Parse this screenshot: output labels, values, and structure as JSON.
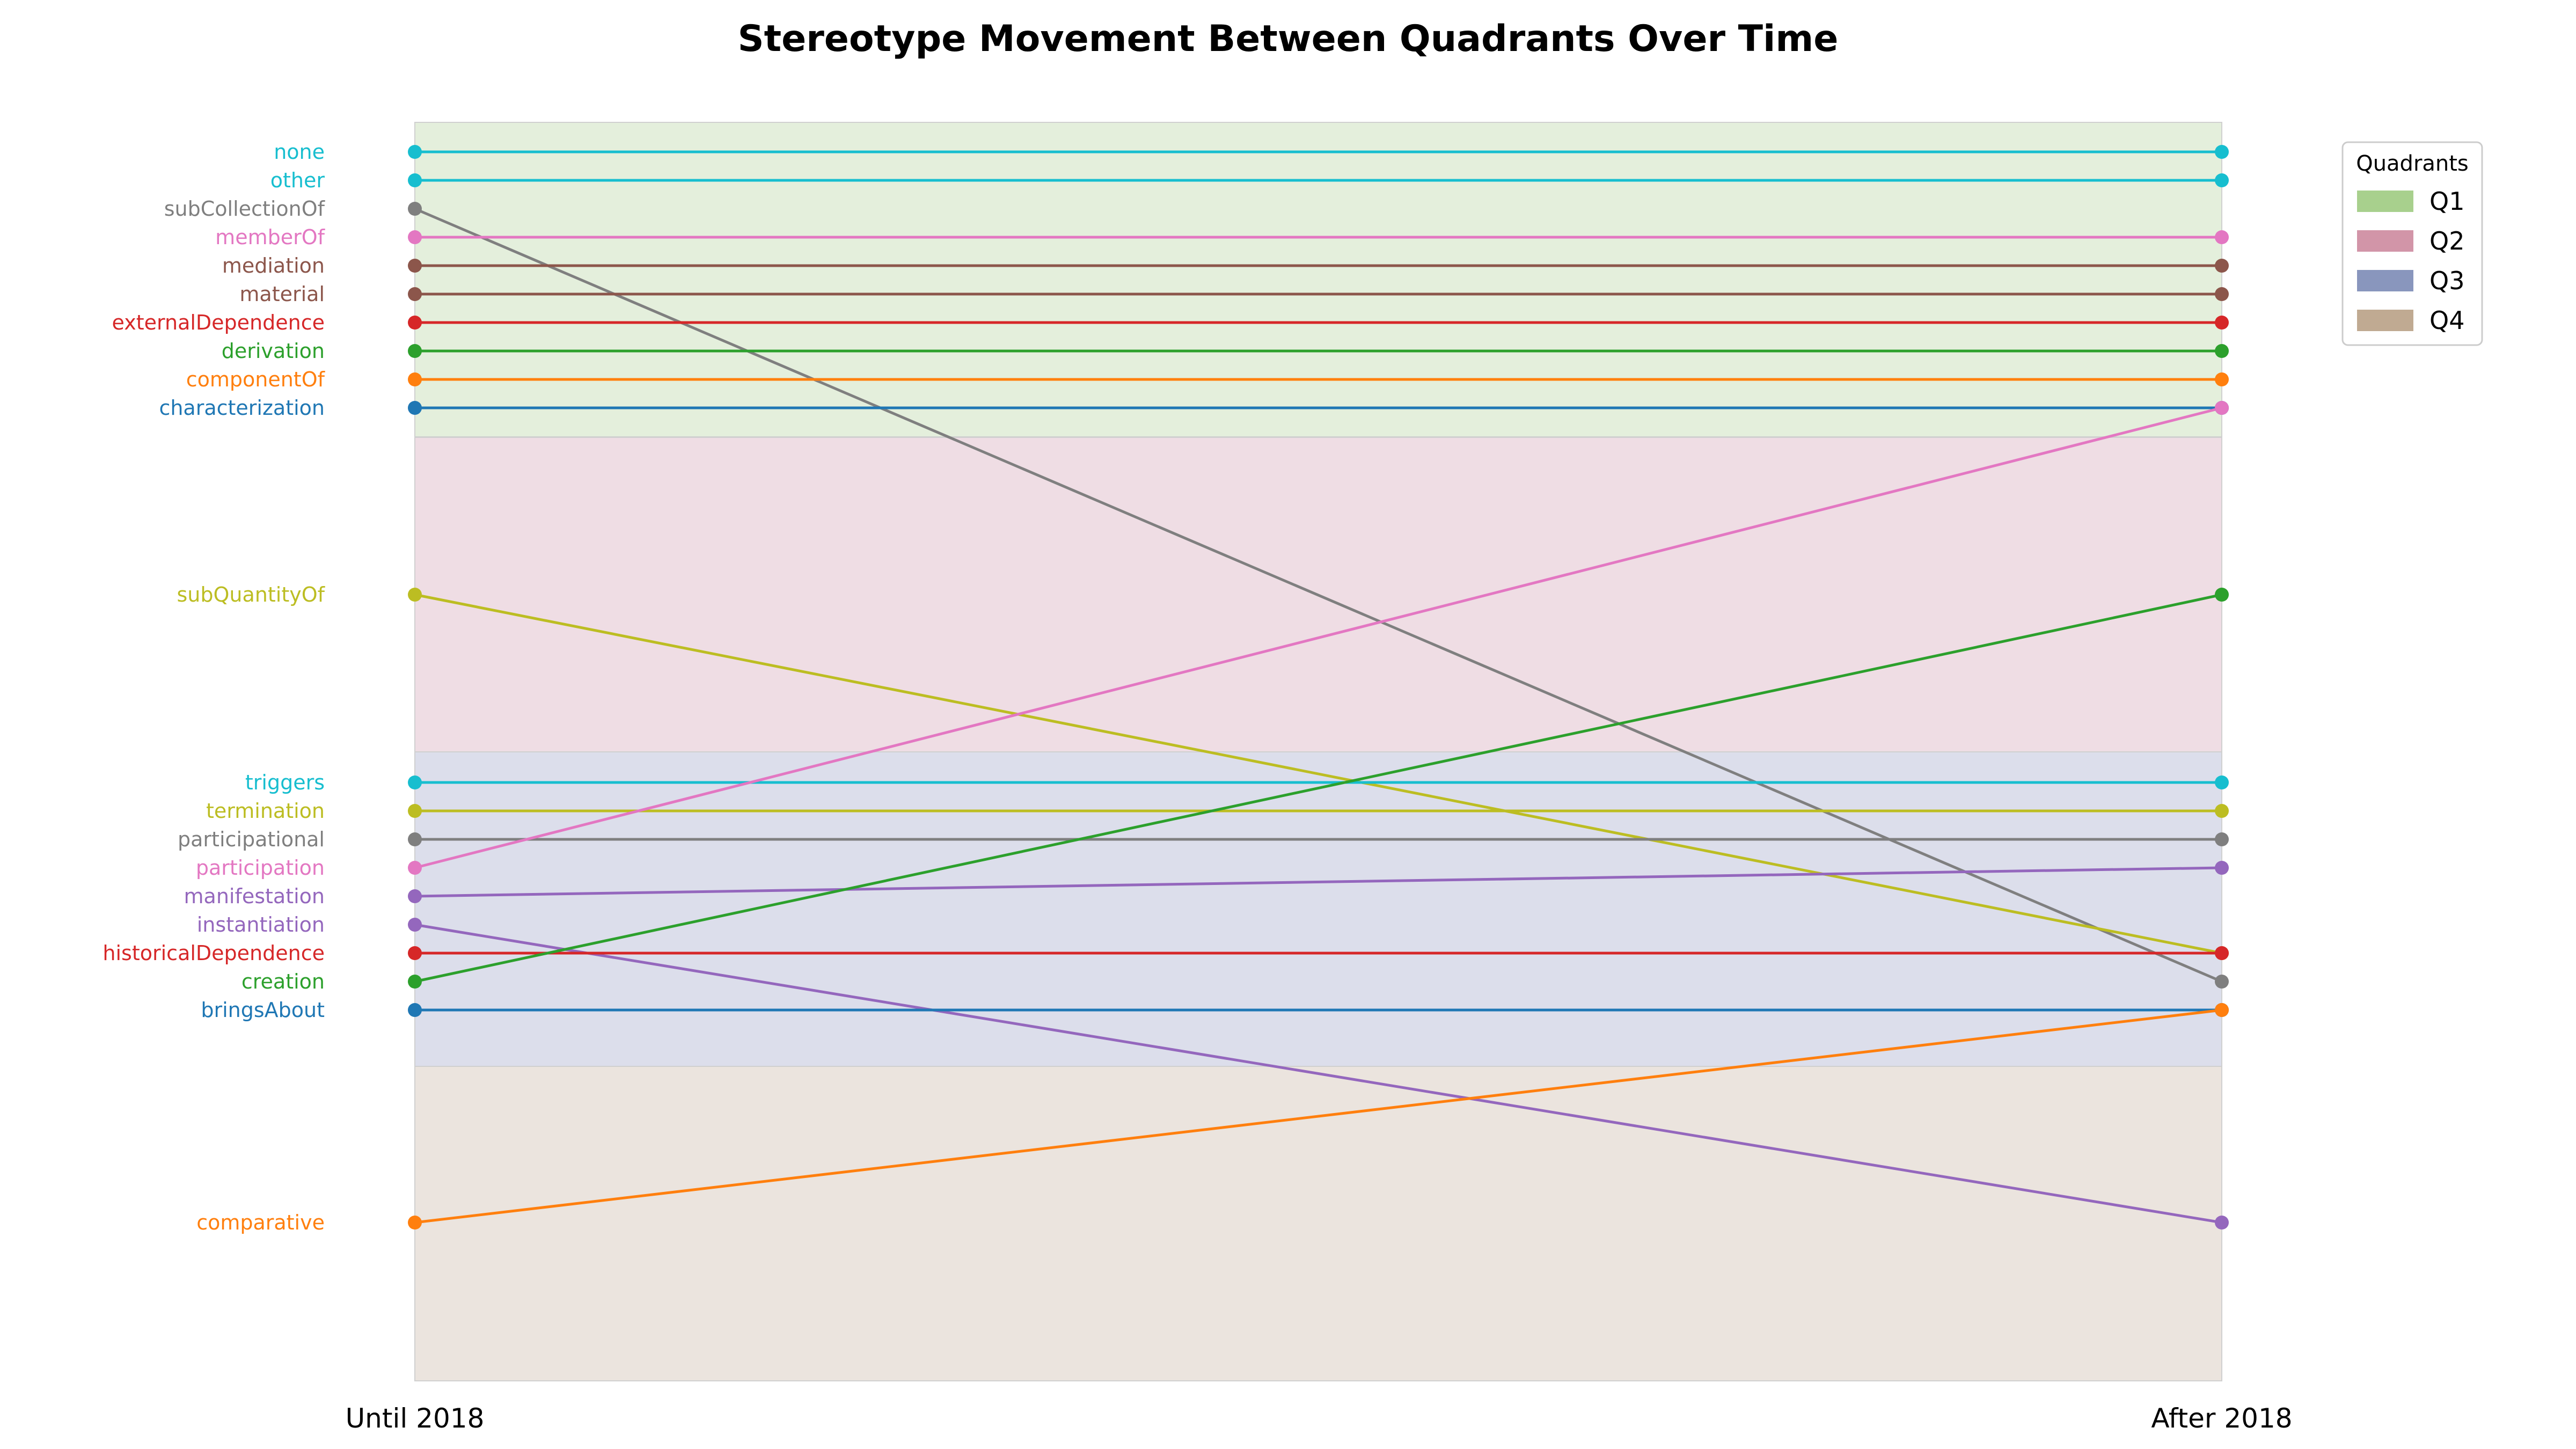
{
  "chart_data": {
    "type": "slope",
    "title": "Stereotype Movement Between Quadrants Over Time",
    "x": [
      "Until 2018",
      "After 2018"
    ],
    "legend": {
      "title": "Quadrants",
      "position": "top-right",
      "items": [
        {
          "name": "Q1",
          "color": "#a8d08d"
        },
        {
          "name": "Q2",
          "color": "#d295a8"
        },
        {
          "name": "Q3",
          "color": "#8996bd"
        },
        {
          "name": "Q4",
          "color": "#c0aa92"
        }
      ]
    },
    "quadrant_bands": [
      {
        "name": "Q1",
        "color": "#e4efdc"
      },
      {
        "name": "Q2",
        "color": "#efdde4"
      },
      {
        "name": "Q3",
        "color": "#dcdeeb"
      },
      {
        "name": "Q4",
        "color": "#ebe4de"
      }
    ],
    "series": [
      {
        "name": "none",
        "color": "#17becf",
        "from": {
          "quadrant": "Q1",
          "rank": 0
        },
        "to": {
          "quadrant": "Q1",
          "rank": 0
        }
      },
      {
        "name": "other",
        "color": "#17becf",
        "from": {
          "quadrant": "Q1",
          "rank": 1
        },
        "to": {
          "quadrant": "Q1",
          "rank": 1
        }
      },
      {
        "name": "subCollectionOf",
        "color": "#7f7f7f",
        "from": {
          "quadrant": "Q1",
          "rank": 2
        },
        "to": {
          "quadrant": "Q3",
          "rank": 7
        }
      },
      {
        "name": "memberOf",
        "color": "#e377c2",
        "from": {
          "quadrant": "Q1",
          "rank": 3
        },
        "to": {
          "quadrant": "Q1",
          "rank": 3
        }
      },
      {
        "name": "mediation",
        "color": "#8c564b",
        "from": {
          "quadrant": "Q1",
          "rank": 4
        },
        "to": {
          "quadrant": "Q1",
          "rank": 4
        }
      },
      {
        "name": "material",
        "color": "#8c564b",
        "from": {
          "quadrant": "Q1",
          "rank": 5
        },
        "to": {
          "quadrant": "Q1",
          "rank": 5
        }
      },
      {
        "name": "externalDependence",
        "color": "#d62728",
        "from": {
          "quadrant": "Q1",
          "rank": 6
        },
        "to": {
          "quadrant": "Q1",
          "rank": 6
        }
      },
      {
        "name": "derivation",
        "color": "#2ca02c",
        "from": {
          "quadrant": "Q1",
          "rank": 7
        },
        "to": {
          "quadrant": "Q1",
          "rank": 7
        }
      },
      {
        "name": "componentOf",
        "color": "#ff7f0e",
        "from": {
          "quadrant": "Q1",
          "rank": 8
        },
        "to": {
          "quadrant": "Q1",
          "rank": 8
        }
      },
      {
        "name": "characterization",
        "color": "#1f77b4",
        "from": {
          "quadrant": "Q1",
          "rank": 9
        },
        "to": {
          "quadrant": "Q1",
          "rank": 9
        }
      },
      {
        "name": "subQuantityOf",
        "color": "#bcbd22",
        "from": {
          "quadrant": "Q2",
          "rank": 0
        },
        "to": {
          "quadrant": "Q3",
          "rank": 6
        }
      },
      {
        "name": "triggers",
        "color": "#17becf",
        "from": {
          "quadrant": "Q3",
          "rank": 0
        },
        "to": {
          "quadrant": "Q3",
          "rank": 0
        }
      },
      {
        "name": "termination",
        "color": "#bcbd22",
        "from": {
          "quadrant": "Q3",
          "rank": 1
        },
        "to": {
          "quadrant": "Q3",
          "rank": 1
        }
      },
      {
        "name": "participational",
        "color": "#7f7f7f",
        "from": {
          "quadrant": "Q3",
          "rank": 2
        },
        "to": {
          "quadrant": "Q3",
          "rank": 2
        }
      },
      {
        "name": "participation",
        "color": "#e377c2",
        "from": {
          "quadrant": "Q3",
          "rank": 3
        },
        "to": {
          "quadrant": "Q1",
          "rank": 9
        }
      },
      {
        "name": "manifestation",
        "color": "#9467bd",
        "from": {
          "quadrant": "Q3",
          "rank": 4
        },
        "to": {
          "quadrant": "Q3",
          "rank": 3
        }
      },
      {
        "name": "instantiation",
        "color": "#9467bd",
        "from": {
          "quadrant": "Q3",
          "rank": 5
        },
        "to": {
          "quadrant": "Q4",
          "rank": 0
        }
      },
      {
        "name": "historicalDependence",
        "color": "#d62728",
        "from": {
          "quadrant": "Q3",
          "rank": 6
        },
        "to": {
          "quadrant": "Q3",
          "rank": 6
        }
      },
      {
        "name": "creation",
        "color": "#2ca02c",
        "from": {
          "quadrant": "Q3",
          "rank": 7
        },
        "to": {
          "quadrant": "Q2",
          "rank": 0
        }
      },
      {
        "name": "bringsAbout",
        "color": "#1f77b4",
        "from": {
          "quadrant": "Q3",
          "rank": 8
        },
        "to": {
          "quadrant": "Q3",
          "rank": 8
        }
      },
      {
        "name": "comparative",
        "color": "#ff7f0e",
        "from": {
          "quadrant": "Q4",
          "rank": 0
        },
        "to": {
          "quadrant": "Q3",
          "rank": 8
        }
      }
    ]
  }
}
